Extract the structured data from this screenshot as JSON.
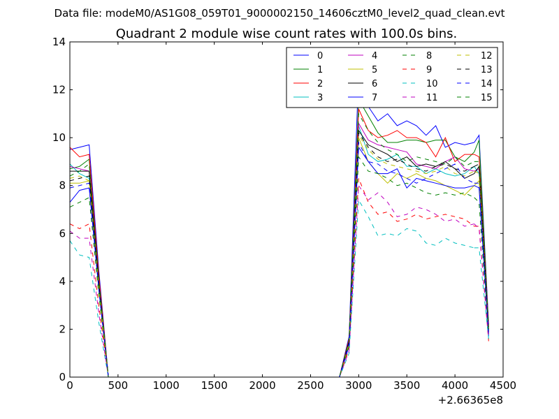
{
  "suptitle": "Data file: modeM0/AS1G08_059T01_9000002150_14606cztM0_level2_quad_clean.evt",
  "chart_data": {
    "type": "line",
    "title": "Quadrant 2 module wise count rates with 100.0s bins.",
    "xlabel": "",
    "ylabel": "",
    "x_offset_label": "+2.66365e8",
    "xlim": [
      0,
      4500
    ],
    "ylim": [
      0,
      14
    ],
    "xticks": [
      0,
      500,
      1000,
      1500,
      2000,
      2500,
      3000,
      3500,
      4000,
      4500
    ],
    "yticks": [
      0,
      2,
      4,
      6,
      8,
      10,
      12,
      14
    ],
    "grid": false,
    "legend_placement": "top-right",
    "legend_columns": 4,
    "x": [
      0,
      100,
      200,
      300,
      400,
      500,
      600,
      700,
      800,
      900,
      1000,
      1100,
      1200,
      1300,
      1400,
      1500,
      1600,
      1700,
      1800,
      1900,
      2000,
      2100,
      2200,
      2300,
      2400,
      2500,
      2600,
      2700,
      2800,
      2900,
      3000,
      3100,
      3200,
      3300,
      3400,
      3500,
      3600,
      3700,
      3800,
      3900,
      4000,
      4100,
      4200,
      4250,
      4350
    ],
    "segments": [
      [
        0,
        1,
        2,
        3,
        4,
        5,
        6,
        7,
        8,
        9,
        10,
        11,
        12,
        13,
        14,
        15,
        16,
        17,
        18,
        19,
        20,
        21,
        22,
        23,
        24,
        25,
        26,
        27,
        28,
        29,
        30,
        31,
        32,
        33,
        34,
        35,
        36,
        37,
        38,
        39,
        40,
        41,
        42
      ],
      [
        42,
        43,
        44
      ]
    ],
    "series": [
      {
        "name": "0",
        "color": "#0000ff",
        "dash": "solid",
        "values": [
          9.5,
          9.6,
          9.7,
          4.5,
          0,
          0,
          0,
          0,
          0,
          0,
          0,
          0,
          0,
          0,
          0,
          0,
          0,
          0,
          0,
          0,
          0,
          0,
          0,
          0,
          0,
          0,
          0,
          0,
          0,
          1.7,
          12.8,
          11.3,
          10.7,
          11.0,
          10.5,
          10.7,
          10.5,
          10.1,
          10.5,
          9.6,
          9.8,
          9.7,
          9.8,
          10.1,
          2.2
        ]
      },
      {
        "name": "1",
        "color": "#008000",
        "dash": "solid",
        "values": [
          8.7,
          8.8,
          9.1,
          4.2,
          0,
          0,
          0,
          0,
          0,
          0,
          0,
          0,
          0,
          0,
          0,
          0,
          0,
          0,
          0,
          0,
          0,
          0,
          0,
          0,
          0,
          0,
          0,
          0,
          0,
          1.6,
          11.6,
          10.9,
          10.2,
          9.8,
          9.8,
          9.9,
          9.9,
          9.8,
          9.9,
          9.9,
          9.2,
          9.0,
          9.4,
          9.9,
          2.1
        ]
      },
      {
        "name": "2",
        "color": "#ff0000",
        "dash": "solid",
        "values": [
          9.6,
          9.2,
          9.3,
          4.3,
          0,
          0,
          0,
          0,
          0,
          0,
          0,
          0,
          0,
          0,
          0,
          0,
          0,
          0,
          0,
          0,
          0,
          0,
          0,
          0,
          0,
          0,
          0,
          0,
          0,
          1.6,
          11.2,
          10.3,
          10.0,
          10.1,
          10.3,
          10.0,
          10.0,
          9.8,
          9.2,
          10.0,
          9.0,
          9.3,
          9.3,
          9.2,
          2.1
        ]
      },
      {
        "name": "3",
        "color": "#00bfbf",
        "dash": "solid",
        "values": [
          8.9,
          8.5,
          8.3,
          3.9,
          0,
          0,
          0,
          0,
          0,
          0,
          0,
          0,
          0,
          0,
          0,
          0,
          0,
          0,
          0,
          0,
          0,
          0,
          0,
          0,
          0,
          0,
          0,
          0,
          0,
          1.5,
          10.5,
          9.3,
          9.0,
          9.1,
          9.3,
          8.8,
          8.8,
          8.5,
          8.7,
          8.5,
          8.4,
          8.5,
          8.8,
          8.5,
          1.9
        ]
      },
      {
        "name": "4",
        "color": "#bf00bf",
        "dash": "solid",
        "values": [
          8.8,
          8.7,
          8.6,
          4.0,
          0,
          0,
          0,
          0,
          0,
          0,
          0,
          0,
          0,
          0,
          0,
          0,
          0,
          0,
          0,
          0,
          0,
          0,
          0,
          0,
          0,
          0,
          0,
          0,
          0,
          1.5,
          10.6,
          9.9,
          9.7,
          9.6,
          9.5,
          9.4,
          8.9,
          8.8,
          8.7,
          9.0,
          9.2,
          8.7,
          8.6,
          8.7,
          2.0
        ]
      },
      {
        "name": "5",
        "color": "#bfbf00",
        "dash": "solid",
        "values": [
          8.1,
          8.1,
          8.2,
          3.8,
          0,
          0,
          0,
          0,
          0,
          0,
          0,
          0,
          0,
          0,
          0,
          0,
          0,
          0,
          0,
          0,
          0,
          0,
          0,
          0,
          0,
          0,
          0,
          0,
          0,
          1.4,
          10.0,
          9.0,
          8.5,
          8.1,
          8.5,
          8.3,
          8.5,
          8.3,
          8.2,
          8.0,
          7.8,
          7.6,
          8.0,
          8.2,
          1.8
        ]
      },
      {
        "name": "6",
        "color": "#000000",
        "dash": "solid",
        "values": [
          8.6,
          8.6,
          8.6,
          4.0,
          0,
          0,
          0,
          0,
          0,
          0,
          0,
          0,
          0,
          0,
          0,
          0,
          0,
          0,
          0,
          0,
          0,
          0,
          0,
          0,
          0,
          0,
          0,
          0,
          0,
          1.5,
          10.3,
          9.7,
          9.5,
          9.3,
          9.0,
          9.2,
          8.8,
          8.9,
          8.8,
          9.0,
          8.7,
          8.3,
          8.5,
          8.8,
          1.9
        ]
      },
      {
        "name": "7",
        "color": "#0000ff",
        "dash": "solid",
        "values": [
          7.3,
          7.8,
          7.9,
          3.7,
          0,
          0,
          0,
          0,
          0,
          0,
          0,
          0,
          0,
          0,
          0,
          0,
          0,
          0,
          0,
          0,
          0,
          0,
          0,
          0,
          0,
          0,
          0,
          0,
          0,
          1.3,
          9.6,
          9.0,
          8.5,
          8.5,
          8.7,
          7.9,
          8.3,
          8.2,
          8.1,
          8.0,
          7.9,
          7.9,
          8.0,
          7.9,
          1.7
        ]
      },
      {
        "name": "8",
        "color": "#008000",
        "dash": "dashed",
        "values": [
          7.1,
          7.3,
          7.5,
          3.5,
          0,
          0,
          0,
          0,
          0,
          0,
          0,
          0,
          0,
          0,
          0,
          0,
          0,
          0,
          0,
          0,
          0,
          0,
          0,
          0,
          0,
          0,
          0,
          0,
          0,
          1.3,
          9.2,
          8.6,
          8.5,
          8.3,
          8.0,
          8.1,
          7.9,
          7.7,
          7.6,
          7.7,
          7.6,
          7.7,
          7.5,
          7.3,
          1.6
        ]
      },
      {
        "name": "9",
        "color": "#ff0000",
        "dash": "dashed",
        "values": [
          6.4,
          6.2,
          6.4,
          3.0,
          0,
          0,
          0,
          0,
          0,
          0,
          0,
          0,
          0,
          0,
          0,
          0,
          0,
          0,
          0,
          0,
          0,
          0,
          0,
          0,
          0,
          0,
          0,
          0,
          0,
          1.2,
          8.3,
          7.3,
          6.8,
          6.9,
          6.5,
          6.6,
          6.8,
          6.6,
          6.7,
          6.8,
          6.7,
          6.6,
          6.3,
          6.3,
          1.5
        ]
      },
      {
        "name": "10",
        "color": "#00bfbf",
        "dash": "dashed",
        "values": [
          5.7,
          5.1,
          5.0,
          2.3,
          0,
          0,
          0,
          0,
          0,
          0,
          0,
          0,
          0,
          0,
          0,
          0,
          0,
          0,
          0,
          0,
          0,
          0,
          0,
          0,
          0,
          0,
          0,
          0,
          0,
          1.0,
          7.4,
          6.7,
          5.9,
          6.0,
          5.9,
          6.2,
          6.1,
          5.6,
          5.5,
          5.8,
          5.6,
          5.5,
          5.4,
          5.4,
          1.6
        ]
      },
      {
        "name": "11",
        "color": "#bf00bf",
        "dash": "dashed",
        "values": [
          6.1,
          5.8,
          5.8,
          2.7,
          0,
          0,
          0,
          0,
          0,
          0,
          0,
          0,
          0,
          0,
          0,
          0,
          0,
          0,
          0,
          0,
          0,
          0,
          0,
          0,
          0,
          0,
          0,
          0,
          0,
          1.1,
          8.0,
          7.4,
          7.7,
          7.3,
          6.7,
          6.8,
          7.1,
          7.0,
          6.8,
          6.5,
          6.6,
          6.3,
          6.4,
          6.2,
          1.6
        ]
      },
      {
        "name": "12",
        "color": "#bfbf00",
        "dash": "dashed",
        "values": [
          8.3,
          8.4,
          8.2,
          3.8,
          0,
          0,
          0,
          0,
          0,
          0,
          0,
          0,
          0,
          0,
          0,
          0,
          0,
          0,
          0,
          0,
          0,
          0,
          0,
          0,
          0,
          0,
          0,
          0,
          0,
          1.4,
          10.1,
          9.5,
          9.1,
          8.9,
          8.8,
          8.7,
          8.6,
          8.5,
          8.6,
          8.8,
          8.5,
          8.4,
          8.6,
          8.5,
          1.8
        ]
      },
      {
        "name": "13",
        "color": "#000000",
        "dash": "dashed",
        "values": [
          8.2,
          8.3,
          8.4,
          3.9,
          0,
          0,
          0,
          0,
          0,
          0,
          0,
          0,
          0,
          0,
          0,
          0,
          0,
          0,
          0,
          0,
          0,
          0,
          0,
          0,
          0,
          0,
          0,
          0,
          0,
          1.5,
          10.2,
          9.6,
          9.2,
          9.0,
          9.1,
          8.9,
          8.7,
          8.6,
          8.8,
          8.9,
          8.7,
          8.6,
          8.8,
          8.9,
          1.9
        ]
      },
      {
        "name": "14",
        "color": "#0000ff",
        "dash": "dashed",
        "values": [
          7.9,
          8.0,
          8.1,
          3.7,
          0,
          0,
          0,
          0,
          0,
          0,
          0,
          0,
          0,
          0,
          0,
          0,
          0,
          0,
          0,
          0,
          0,
          0,
          0,
          0,
          0,
          0,
          0,
          0,
          0,
          1.4,
          9.8,
          9.0,
          8.9,
          8.6,
          8.5,
          8.3,
          8.1,
          8.3,
          8.5,
          8.7,
          8.9,
          8.3,
          8.1,
          8.1,
          1.8
        ]
      },
      {
        "name": "15",
        "color": "#008000",
        "dash": "dashed",
        "values": [
          8.4,
          8.6,
          8.9,
          4.1,
          0,
          0,
          0,
          0,
          0,
          0,
          0,
          0,
          0,
          0,
          0,
          0,
          0,
          0,
          0,
          0,
          0,
          0,
          0,
          0,
          0,
          0,
          0,
          0,
          0,
          1.5,
          11.0,
          10.3,
          9.8,
          9.5,
          9.3,
          9.0,
          9.2,
          9.1,
          9.0,
          8.9,
          9.2,
          8.8,
          9.0,
          9.0,
          2.0
        ]
      }
    ]
  }
}
